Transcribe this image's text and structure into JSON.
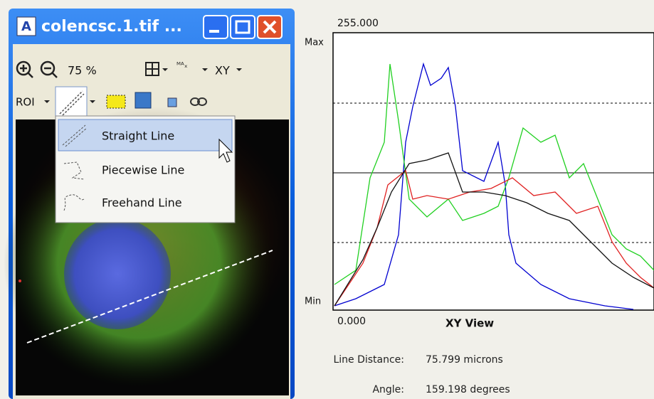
{
  "window": {
    "title": "colencsc.1.tif ...",
    "toolbar": {
      "zoom": "75 %",
      "view": "XY",
      "roi": "ROI"
    },
    "menu": [
      "Straight Line",
      "Piecewise Line",
      "Freehand Line"
    ]
  },
  "plot": {
    "max_value": "255.000",
    "max_label": "Max",
    "min_label": "Min",
    "min_value": "0.000",
    "title": "XY View"
  },
  "info": [
    {
      "label": "Line Distance:",
      "value": "75.799 microns"
    },
    {
      "label": "Angle:",
      "value": "159.198 degrees"
    }
  ]
}
